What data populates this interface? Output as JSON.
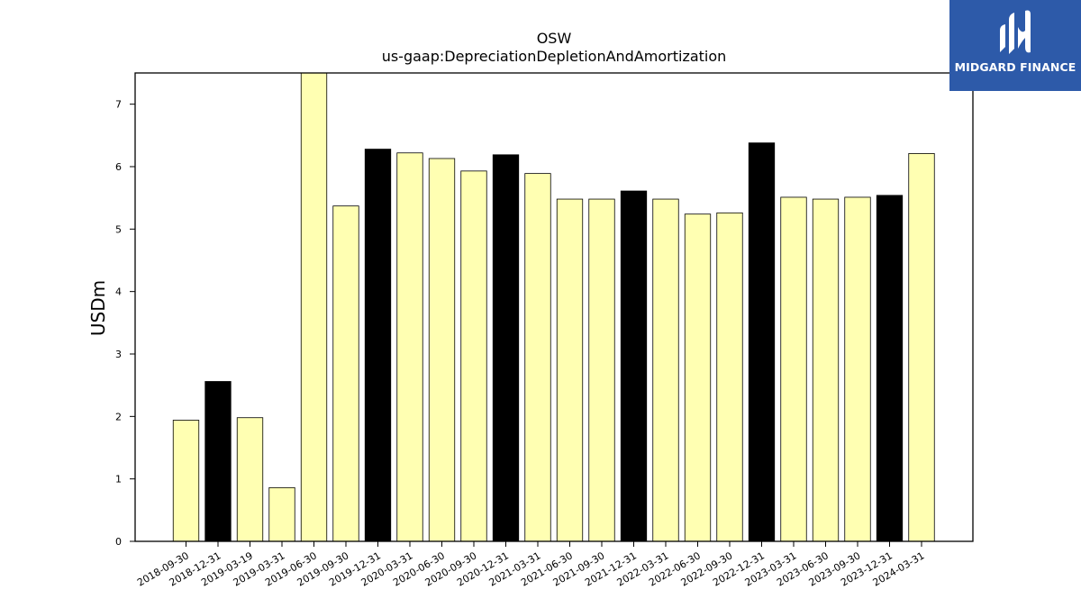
{
  "logo": {
    "text": "MIDGARD FINANCE",
    "icon": "midgard-m-logo-icon",
    "background": "#2d5aa9"
  },
  "chart_data": {
    "type": "bar",
    "title": "OSW",
    "subtitle": "us-gaap:DepreciationDepletionAndAmortization",
    "xlabel": "",
    "ylabel": "USDm",
    "ylim": [
      0,
      7.5
    ],
    "yticks": [
      0,
      1,
      2,
      3,
      4,
      5,
      6,
      7
    ],
    "grid": false,
    "colors": {
      "quarter": "#ffffb2",
      "year_end": "#000000",
      "edge": "#000000"
    },
    "categories": [
      "2018-09-30",
      "2018-12-31",
      "2019-03-19",
      "2019-03-31",
      "2019-06-30",
      "2019-09-30",
      "2019-12-31",
      "2020-03-31",
      "2020-06-30",
      "2020-09-30",
      "2020-12-31",
      "2021-03-31",
      "2021-06-30",
      "2021-09-30",
      "2021-12-31",
      "2022-03-31",
      "2022-06-30",
      "2022-09-30",
      "2022-12-31",
      "2023-03-31",
      "2023-06-30",
      "2023-09-30",
      "2023-12-31",
      "2024-03-31"
    ],
    "values": [
      1.94,
      2.56,
      1.98,
      0.86,
      7.6,
      5.37,
      6.28,
      6.22,
      6.13,
      5.93,
      6.19,
      5.89,
      5.48,
      5.48,
      5.61,
      5.48,
      5.24,
      5.26,
      6.38,
      5.51,
      5.48,
      5.51,
      5.54,
      6.21
    ],
    "highlight": [
      false,
      true,
      false,
      false,
      false,
      false,
      true,
      false,
      false,
      false,
      true,
      false,
      false,
      false,
      true,
      false,
      false,
      false,
      true,
      false,
      false,
      false,
      true,
      false
    ]
  }
}
